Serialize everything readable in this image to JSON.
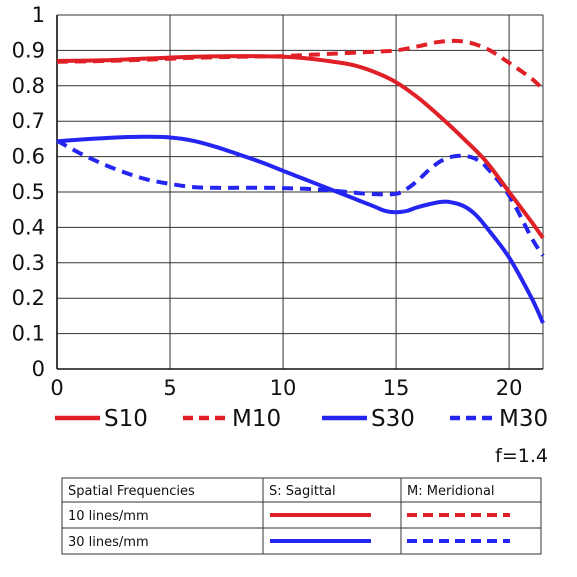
{
  "chart_data": {
    "type": "line",
    "x_ticks": [
      0,
      5,
      10,
      15,
      20
    ],
    "y_ticks": [
      0,
      0.1,
      0.2,
      0.3,
      0.4,
      0.5,
      0.6,
      0.7,
      0.8,
      0.9,
      1
    ],
    "xlim": [
      0,
      21.5
    ],
    "ylim": [
      0,
      1
    ],
    "grid": true,
    "series": [
      {
        "name": "S10",
        "color": "#e01f26",
        "dash": false,
        "points": [
          [
            0,
            0.87
          ],
          [
            2,
            0.872
          ],
          [
            4,
            0.877
          ],
          [
            6,
            0.882
          ],
          [
            8,
            0.884
          ],
          [
            10,
            0.882
          ],
          [
            11,
            0.878
          ],
          [
            12,
            0.87
          ],
          [
            13,
            0.86
          ],
          [
            14,
            0.84
          ],
          [
            15,
            0.81
          ],
          [
            16,
            0.765
          ],
          [
            17,
            0.71
          ],
          [
            18,
            0.65
          ],
          [
            19,
            0.585
          ],
          [
            20,
            0.5
          ],
          [
            21,
            0.415
          ],
          [
            21.5,
            0.37
          ]
        ]
      },
      {
        "name": "M10",
        "color": "#e01f26",
        "dash": true,
        "points": [
          [
            0,
            0.868
          ],
          [
            2,
            0.87
          ],
          [
            4,
            0.874
          ],
          [
            6,
            0.879
          ],
          [
            8,
            0.882
          ],
          [
            10,
            0.884
          ],
          [
            12,
            0.89
          ],
          [
            14,
            0.896
          ],
          [
            15,
            0.9
          ],
          [
            16,
            0.912
          ],
          [
            17,
            0.925
          ],
          [
            18,
            0.925
          ],
          [
            19,
            0.905
          ],
          [
            20,
            0.865
          ],
          [
            21,
            0.82
          ],
          [
            21.5,
            0.79
          ]
        ]
      },
      {
        "name": "S30",
        "color": "#2525f2",
        "dash": false,
        "points": [
          [
            0,
            0.643
          ],
          [
            1,
            0.648
          ],
          [
            2,
            0.652
          ],
          [
            3,
            0.655
          ],
          [
            4,
            0.656
          ],
          [
            5,
            0.654
          ],
          [
            6,
            0.645
          ],
          [
            7,
            0.628
          ],
          [
            8,
            0.607
          ],
          [
            9,
            0.585
          ],
          [
            10,
            0.56
          ],
          [
            11,
            0.535
          ],
          [
            12,
            0.51
          ],
          [
            13,
            0.485
          ],
          [
            14,
            0.46
          ],
          [
            14.5,
            0.447
          ],
          [
            15,
            0.443
          ],
          [
            15.5,
            0.447
          ],
          [
            16,
            0.458
          ],
          [
            17,
            0.472
          ],
          [
            17.5,
            0.47
          ],
          [
            18,
            0.46
          ],
          [
            18.5,
            0.437
          ],
          [
            19,
            0.4
          ],
          [
            20,
            0.315
          ],
          [
            21,
            0.2
          ],
          [
            21.5,
            0.13
          ]
        ]
      },
      {
        "name": "M30",
        "color": "#2525f2",
        "dash": true,
        "points": [
          [
            0,
            0.645
          ],
          [
            1,
            0.61
          ],
          [
            2,
            0.58
          ],
          [
            3,
            0.555
          ],
          [
            4,
            0.535
          ],
          [
            5,
            0.523
          ],
          [
            6,
            0.514
          ],
          [
            7,
            0.512
          ],
          [
            8,
            0.512
          ],
          [
            9,
            0.512
          ],
          [
            10,
            0.511
          ],
          [
            11,
            0.509
          ],
          [
            12,
            0.505
          ],
          [
            13,
            0.499
          ],
          [
            14,
            0.494
          ],
          [
            15,
            0.495
          ],
          [
            15.5,
            0.51
          ],
          [
            16,
            0.535
          ],
          [
            16.5,
            0.565
          ],
          [
            17,
            0.588
          ],
          [
            17.5,
            0.6
          ],
          [
            18,
            0.602
          ],
          [
            18.5,
            0.594
          ],
          [
            19,
            0.57
          ],
          [
            20,
            0.49
          ],
          [
            21,
            0.37
          ],
          [
            21.5,
            0.32
          ]
        ]
      }
    ],
    "aperture_label": "f=1.4",
    "legend": {
      "position": "bottom",
      "items": [
        {
          "name": "S10",
          "color": "#e01f26",
          "dash": false
        },
        {
          "name": "M10",
          "color": "#e01f26",
          "dash": true
        },
        {
          "name": "S30",
          "color": "#2525f2",
          "dash": false
        },
        {
          "name": "M30",
          "color": "#2525f2",
          "dash": true
        }
      ]
    },
    "key_table": {
      "header": [
        "Spatial Frequencies",
        "S: Sagittal",
        "M: Meridional"
      ],
      "rows": [
        {
          "label": "10 lines/mm",
          "color": "#e01f26"
        },
        {
          "label": "30 lines/mm",
          "color": "#2525f2"
        }
      ]
    }
  }
}
